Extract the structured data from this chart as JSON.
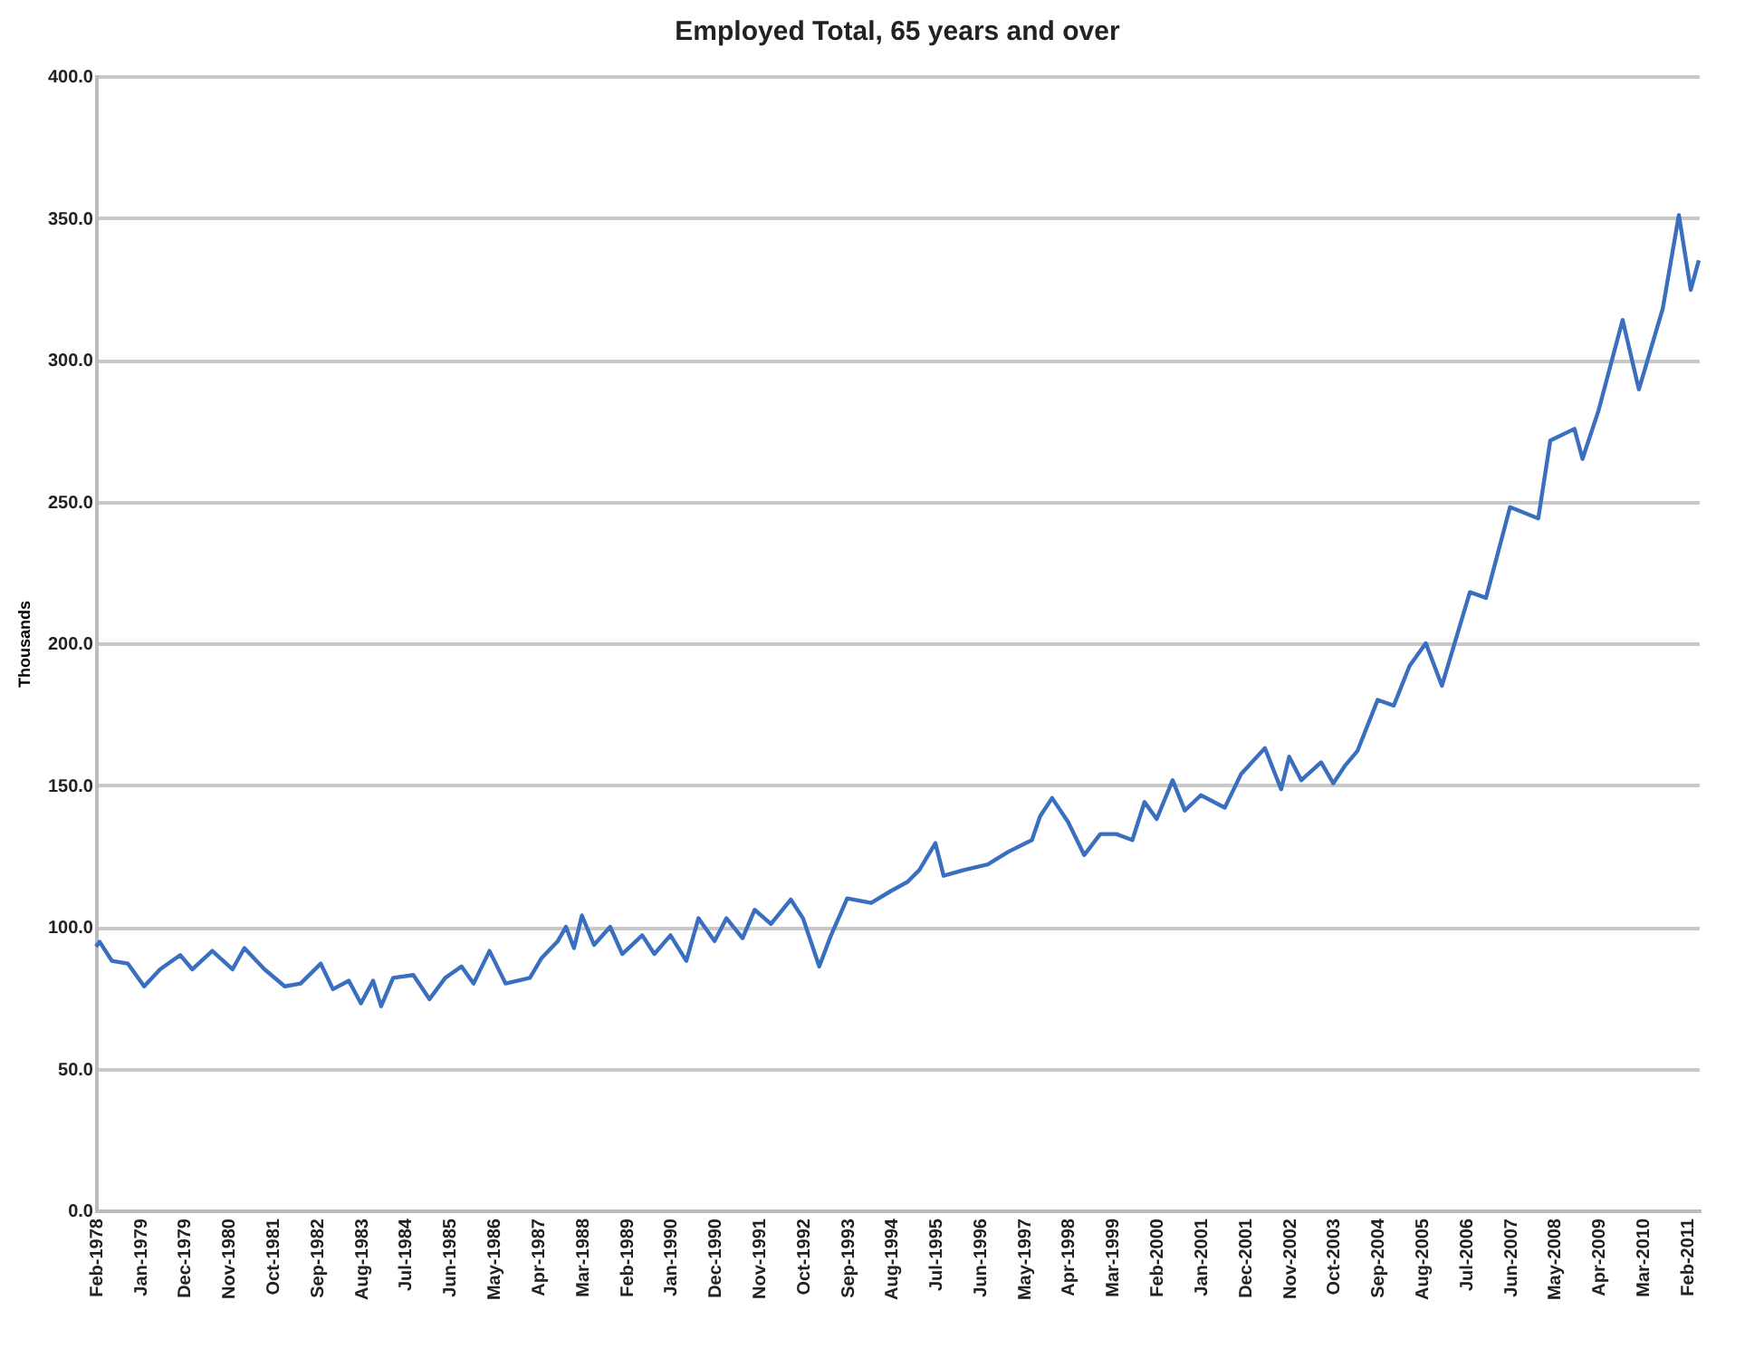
{
  "chart_data": {
    "type": "line",
    "title": "Employed Total, 65 years and over",
    "ylabel": "Thousands",
    "x": [
      "1978-02",
      "1978-03",
      "1978-06",
      "1978-10",
      "1979-02",
      "1979-06",
      "1979-11",
      "1980-02",
      "1980-07",
      "1980-12",
      "1981-03",
      "1981-08",
      "1982-01",
      "1982-05",
      "1982-10",
      "1983-01",
      "1983-05",
      "1983-08",
      "1983-11",
      "1984-01",
      "1984-04",
      "1984-09",
      "1985-01",
      "1985-05",
      "1985-09",
      "1985-12",
      "1986-04",
      "1986-08",
      "1987-02",
      "1987-05",
      "1987-09",
      "1987-11",
      "1988-01",
      "1988-03",
      "1988-06",
      "1988-10",
      "1989-01",
      "1989-06",
      "1989-09",
      "1990-01",
      "1990-05",
      "1990-08",
      "1990-12",
      "1991-03",
      "1991-07",
      "1991-10",
      "1992-02",
      "1992-07",
      "1992-10",
      "1993-02",
      "1993-05",
      "1993-09",
      "1994-03",
      "1994-08",
      "1994-12",
      "1995-03",
      "1995-07",
      "1995-09",
      "1996-02",
      "1996-08",
      "1997-01",
      "1997-07",
      "1997-09",
      "1997-12",
      "1998-04",
      "1998-08",
      "1998-12",
      "1999-04",
      "1999-08",
      "1999-11",
      "2000-02",
      "2000-06",
      "2000-09",
      "2001-01",
      "2001-07",
      "2001-11",
      "2002-05",
      "2002-09",
      "2002-11",
      "2003-02",
      "2003-07",
      "2003-10",
      "2004-01",
      "2004-04",
      "2004-09",
      "2005-01",
      "2005-05",
      "2005-09",
      "2006-01",
      "2006-08",
      "2006-12",
      "2007-06",
      "2008-01",
      "2008-04",
      "2008-10",
      "2008-12",
      "2009-04",
      "2009-10",
      "2010-02",
      "2010-08",
      "2010-12",
      "2011-03",
      "2011-05"
    ],
    "series": [
      {
        "color": "#3a6fc0",
        "values": [
          93,
          94.7,
          88,
          87,
          79,
          85,
          90,
          85,
          91.5,
          85,
          92.5,
          85,
          79,
          80,
          87,
          78,
          81,
          73,
          81,
          72,
          82,
          83,
          74.5,
          82,
          86,
          80,
          91.5,
          80,
          82,
          89,
          95,
          100,
          92.5,
          104,
          93.6,
          100,
          90.4,
          97,
          90.4,
          97,
          88,
          103,
          95,
          103,
          96,
          106,
          101,
          109.6,
          103,
          86,
          97,
          110,
          108.4,
          112.7,
          115.8,
          120,
          129.5,
          118,
          120,
          122,
          126.4,
          130.6,
          139,
          145.4,
          137,
          125.3,
          132.7,
          132.7,
          130.6,
          144,
          138,
          151.7,
          141,
          146.4,
          142,
          153.8,
          163,
          148.5,
          160,
          151.7,
          158,
          150.6,
          157,
          162,
          180,
          178,
          192,
          200,
          185,
          218,
          216,
          248,
          244,
          271.5,
          275.6,
          265,
          282,
          314,
          289.5,
          318,
          351,
          324.6,
          335
        ]
      }
    ],
    "xlim": [
      "1978-02",
      "2011-05"
    ],
    "xticks": [
      {
        "value": "1978-02",
        "label": "Feb-1978"
      },
      {
        "value": "1979-01",
        "label": "Jan-1979"
      },
      {
        "value": "1979-12",
        "label": "Dec-1979"
      },
      {
        "value": "1980-11",
        "label": "Nov-1980"
      },
      {
        "value": "1981-10",
        "label": "Oct-1981"
      },
      {
        "value": "1982-09",
        "label": "Sep-1982"
      },
      {
        "value": "1983-08",
        "label": "Aug-1983"
      },
      {
        "value": "1984-07",
        "label": "Jul-1984"
      },
      {
        "value": "1985-06",
        "label": "Jun-1985"
      },
      {
        "value": "1986-05",
        "label": "May-1986"
      },
      {
        "value": "1987-04",
        "label": "Apr-1987"
      },
      {
        "value": "1988-03",
        "label": "Mar-1988"
      },
      {
        "value": "1989-02",
        "label": "Feb-1989"
      },
      {
        "value": "1990-01",
        "label": "Jan-1990"
      },
      {
        "value": "1990-12",
        "label": "Dec-1990"
      },
      {
        "value": "1991-11",
        "label": "Nov-1991"
      },
      {
        "value": "1992-10",
        "label": "Oct-1992"
      },
      {
        "value": "1993-09",
        "label": "Sep-1993"
      },
      {
        "value": "1994-08",
        "label": "Aug-1994"
      },
      {
        "value": "1995-07",
        "label": "Jul-1995"
      },
      {
        "value": "1996-06",
        "label": "Jun-1996"
      },
      {
        "value": "1997-05",
        "label": "May-1997"
      },
      {
        "value": "1998-04",
        "label": "Apr-1998"
      },
      {
        "value": "1999-03",
        "label": "Mar-1999"
      },
      {
        "value": "2000-02",
        "label": "Feb-2000"
      },
      {
        "value": "2001-01",
        "label": "Jan-2001"
      },
      {
        "value": "2001-12",
        "label": "Dec-2001"
      },
      {
        "value": "2002-11",
        "label": "Nov-2002"
      },
      {
        "value": "2003-10",
        "label": "Oct-2003"
      },
      {
        "value": "2004-09",
        "label": "Sep-2004"
      },
      {
        "value": "2005-08",
        "label": "Aug-2005"
      },
      {
        "value": "2006-07",
        "label": "Jul-2006"
      },
      {
        "value": "2007-06",
        "label": "Jun-2007"
      },
      {
        "value": "2008-05",
        "label": "May-2008"
      },
      {
        "value": "2009-04",
        "label": "Apr-2009"
      },
      {
        "value": "2010-03",
        "label": "Mar-2010"
      },
      {
        "value": "2011-02",
        "label": "Feb-2011"
      }
    ],
    "ylim": [
      0,
      400
    ],
    "yticks": [
      {
        "value": 0,
        "label": "0.0"
      },
      {
        "value": 50,
        "label": "50.0"
      },
      {
        "value": 100,
        "label": "100.0"
      },
      {
        "value": 150,
        "label": "150.0"
      },
      {
        "value": 200,
        "label": "200.0"
      },
      {
        "value": 250,
        "label": "250.0"
      },
      {
        "value": 300,
        "label": "300.0"
      },
      {
        "value": 350,
        "label": "350.0"
      },
      {
        "value": 400,
        "label": "400.0"
      }
    ],
    "grid": "y",
    "marker": "none",
    "line_style": "solid"
  }
}
